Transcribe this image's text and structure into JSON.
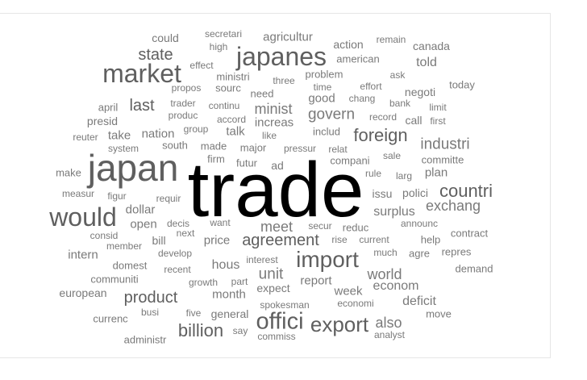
{
  "title": "",
  "colors": {
    "dark": "#000000",
    "mid": "#5f5f5f",
    "light": "#7a7a7a",
    "background": "#ffffff",
    "border": "#e6e6e6"
  },
  "words": [
    {
      "text": "trade",
      "weight": 1.0
    },
    {
      "text": "japan",
      "weight": 0.52
    },
    {
      "text": "would",
      "weight": 0.38
    },
    {
      "text": "market",
      "weight": 0.38
    },
    {
      "text": "japanes",
      "weight": 0.38
    },
    {
      "text": "offici",
      "weight": 0.34
    },
    {
      "text": "import",
      "weight": 0.33
    },
    {
      "text": "export",
      "weight": 0.31
    },
    {
      "text": "countri",
      "weight": 0.27
    },
    {
      "text": "foreign",
      "weight": 0.27
    },
    {
      "text": "billion",
      "weight": 0.26
    },
    {
      "text": "product",
      "weight": 0.25
    },
    {
      "text": "agreement",
      "weight": 0.25
    },
    {
      "text": "state",
      "weight": 0.25
    },
    {
      "text": "last",
      "weight": 0.25
    },
    {
      "text": "govern",
      "weight": 0.24
    },
    {
      "text": "industri",
      "weight": 0.24
    },
    {
      "text": "unit",
      "weight": 0.24
    },
    {
      "text": "minist",
      "weight": 0.23
    },
    {
      "text": "meet",
      "weight": 0.22
    },
    {
      "text": "exchang",
      "weight": 0.22
    },
    {
      "text": "world",
      "weight": 0.22
    },
    {
      "text": "also",
      "weight": 0.22
    },
    {
      "text": "surplus",
      "weight": 0.21
    },
    {
      "text": "deficit",
      "weight": 0.21
    },
    {
      "text": "econom",
      "weight": 0.21
    },
    {
      "text": "hous",
      "weight": 0.21
    },
    {
      "text": "told",
      "weight": 0.21
    },
    {
      "text": "dollar",
      "weight": 0.2
    },
    {
      "text": "open",
      "weight": 0.2
    },
    {
      "text": "month",
      "weight": 0.2
    },
    {
      "text": "price",
      "weight": 0.2
    },
    {
      "text": "nation",
      "weight": 0.19
    },
    {
      "text": "take",
      "weight": 0.19
    },
    {
      "text": "talk",
      "weight": 0.19
    },
    {
      "text": "plan",
      "weight": 0.19
    },
    {
      "text": "increas",
      "weight": 0.18
    },
    {
      "text": "week",
      "weight": 0.18
    },
    {
      "text": "report",
      "weight": 0.18
    },
    {
      "text": "good",
      "weight": 0.18
    },
    {
      "text": "agricultur",
      "weight": 0.18
    },
    {
      "text": "intern",
      "weight": 0.18
    },
    {
      "text": "bill",
      "weight": 0.17
    },
    {
      "text": "expect",
      "weight": 0.17
    },
    {
      "text": "action",
      "weight": 0.17
    },
    {
      "text": "issu",
      "weight": 0.17
    },
    {
      "text": "polici",
      "weight": 0.17
    },
    {
      "text": "ad",
      "weight": 0.17
    },
    {
      "text": "presid",
      "weight": 0.17
    },
    {
      "text": "canada",
      "weight": 0.16
    },
    {
      "text": "european",
      "weight": 0.16
    },
    {
      "text": "could",
      "weight": 0.16
    },
    {
      "text": "negoti",
      "weight": 0.16
    },
    {
      "text": "call",
      "weight": 0.16
    },
    {
      "text": "general",
      "weight": 0.16
    },
    {
      "text": "compani",
      "weight": 0.16
    },
    {
      "text": "committe",
      "weight": 0.16
    },
    {
      "text": "domest",
      "weight": 0.16
    },
    {
      "text": "ministri",
      "weight": 0.16
    },
    {
      "text": "need",
      "weight": 0.16
    },
    {
      "text": "major",
      "weight": 0.16
    },
    {
      "text": "south",
      "weight": 0.16
    },
    {
      "text": "made",
      "weight": 0.16
    },
    {
      "text": "move",
      "weight": 0.16
    },
    {
      "text": "firm",
      "weight": 0.16
    },
    {
      "text": "futur",
      "weight": 0.16
    },
    {
      "text": "sourc",
      "weight": 0.16
    },
    {
      "text": "includ",
      "weight": 0.16
    },
    {
      "text": "today",
      "weight": 0.15
    },
    {
      "text": "april",
      "weight": 0.15
    },
    {
      "text": "make",
      "weight": 0.15
    },
    {
      "text": "communiti",
      "weight": 0.15
    },
    {
      "text": "currenc",
      "weight": 0.15
    },
    {
      "text": "administr",
      "weight": 0.15
    },
    {
      "text": "american",
      "weight": 0.15
    },
    {
      "text": "problem",
      "weight": 0.15
    },
    {
      "text": "reduc",
      "weight": 0.15
    },
    {
      "text": "help",
      "weight": 0.15
    },
    {
      "text": "contract",
      "weight": 0.15
    },
    {
      "text": "demand",
      "weight": 0.15
    },
    {
      "text": "repres",
      "weight": 0.15
    },
    {
      "text": "agre",
      "weight": 0.15
    },
    {
      "text": "analyst",
      "weight": 0.14
    },
    {
      "text": "economi",
      "weight": 0.14
    },
    {
      "text": "announc",
      "weight": 0.14
    },
    {
      "text": "measur",
      "weight": 0.14
    },
    {
      "text": "growth",
      "weight": 0.14
    },
    {
      "text": "develop",
      "weight": 0.14
    },
    {
      "text": "system",
      "weight": 0.14
    },
    {
      "text": "secretari",
      "weight": 0.14
    },
    {
      "text": "effect",
      "weight": 0.14
    },
    {
      "text": "reuter",
      "weight": 0.14
    },
    {
      "text": "bank",
      "weight": 0.14
    },
    {
      "text": "chang",
      "weight": 0.14
    },
    {
      "text": "spokesman",
      "weight": 0.14
    },
    {
      "text": "continu",
      "weight": 0.14
    },
    {
      "text": "pressur",
      "weight": 0.14
    },
    {
      "text": "sale",
      "weight": 0.14
    },
    {
      "text": "next",
      "weight": 0.14
    },
    {
      "text": "secur",
      "weight": 0.14
    },
    {
      "text": "current",
      "weight": 0.14
    },
    {
      "text": "rise",
      "weight": 0.14
    },
    {
      "text": "much",
      "weight": 0.14
    },
    {
      "text": "time",
      "weight": 0.14
    },
    {
      "text": "three",
      "weight": 0.14
    },
    {
      "text": "high",
      "weight": 0.14
    },
    {
      "text": "remain",
      "weight": 0.14
    },
    {
      "text": "ask",
      "weight": 0.14
    },
    {
      "text": "effort",
      "weight": 0.14
    },
    {
      "text": "record",
      "weight": 0.14
    },
    {
      "text": "limit",
      "weight": 0.14
    },
    {
      "text": "first",
      "weight": 0.14
    },
    {
      "text": "larg",
      "weight": 0.14
    },
    {
      "text": "rule",
      "weight": 0.14
    },
    {
      "text": "relat",
      "weight": 0.14
    },
    {
      "text": "like",
      "weight": 0.14
    },
    {
      "text": "group",
      "weight": 0.14
    },
    {
      "text": "accord",
      "weight": 0.14
    },
    {
      "text": "produc",
      "weight": 0.14
    },
    {
      "text": "trader",
      "weight": 0.14
    },
    {
      "text": "propos",
      "weight": 0.14
    },
    {
      "text": "figur",
      "weight": 0.14
    },
    {
      "text": "requir",
      "weight": 0.14
    },
    {
      "text": "decis",
      "weight": 0.14
    },
    {
      "text": "want",
      "weight": 0.14
    },
    {
      "text": "consid",
      "weight": 0.14
    },
    {
      "text": "member",
      "weight": 0.14
    },
    {
      "text": "recent",
      "weight": 0.14
    },
    {
      "text": "interest",
      "weight": 0.14
    },
    {
      "text": "part",
      "weight": 0.14
    },
    {
      "text": "five",
      "weight": 0.14
    },
    {
      "text": "busi",
      "weight": 0.14
    },
    {
      "text": "say",
      "weight": 0.14
    },
    {
      "text": "commiss",
      "weight": 0.14
    }
  ]
}
